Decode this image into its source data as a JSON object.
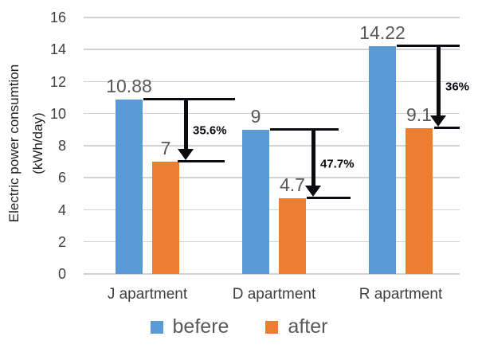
{
  "chart_data": {
    "type": "bar",
    "title": "",
    "categories": [
      "J apartment",
      "D apartment",
      "R apartment"
    ],
    "series": [
      {
        "name": "befere",
        "color": "#5B9BD5",
        "values": [
          10.88,
          9,
          14.22
        ],
        "labels": [
          "10.88",
          "9",
          "14.22"
        ]
      },
      {
        "name": "after",
        "color": "#ED7D31",
        "values": [
          7,
          4.7,
          9.1
        ],
        "labels": [
          "7",
          "4.7",
          "9.1"
        ]
      }
    ],
    "annotations": [
      {
        "percent": "35.6%"
      },
      {
        "percent": "47.7%"
      },
      {
        "percent": "36%"
      }
    ],
    "ylabel_line1": "Electric power consumtion",
    "ylabel_line2": "(kWh/day)",
    "yticks": [
      0,
      2,
      4,
      6,
      8,
      10,
      12,
      14,
      16
    ],
    "ylim": [
      0,
      16
    ],
    "grid": true,
    "legend_position": "bottom",
    "colors": {
      "gridline": "#d3d3d3",
      "annotation": "#0a0a12",
      "data_label": "#595959",
      "axis_text": "#3f3f3f"
    }
  }
}
